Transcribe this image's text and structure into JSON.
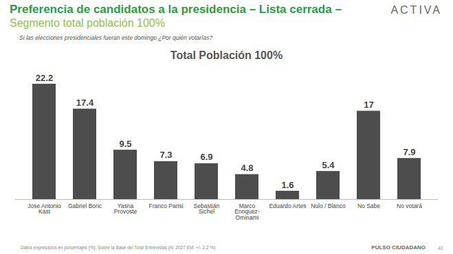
{
  "chart_data": {
    "type": "bar",
    "title": "Preferencia de candidatos a la presidencia – Lista cerrada –",
    "subtitle": "Segmento total población 100%",
    "question": "Si las elecciones presidenciales fueran este domingo ¿Por quién votarías?",
    "chart_title": "Total Población 100%",
    "logo": "ACTIVA",
    "note": "Datos expresados en porcentajes (%). Sobre la Base del Total Entrevistas (N: 2027  EM: +/- 2,2 %)",
    "source": "PULSO CIUDADANO",
    "page": "41",
    "categories": [
      "Jose Antonio Kast",
      "Gabriel Boric",
      "Yasna Provoste",
      "Franco Parisi",
      "Sebastián Sichel",
      "Marco Enriquez-Ominami",
      "Eduardo Artes",
      "Nulo / Blanco",
      "No Sabe",
      "No votará"
    ],
    "values": [
      22.2,
      17.4,
      9.5,
      7.3,
      6.9,
      4.8,
      1.6,
      5.4,
      17,
      7.9
    ],
    "color": "#4d4d4d",
    "ylim": [
      0,
      22.2
    ],
    "data_labels": true,
    "tick_labels": "x",
    "grid": false
  }
}
